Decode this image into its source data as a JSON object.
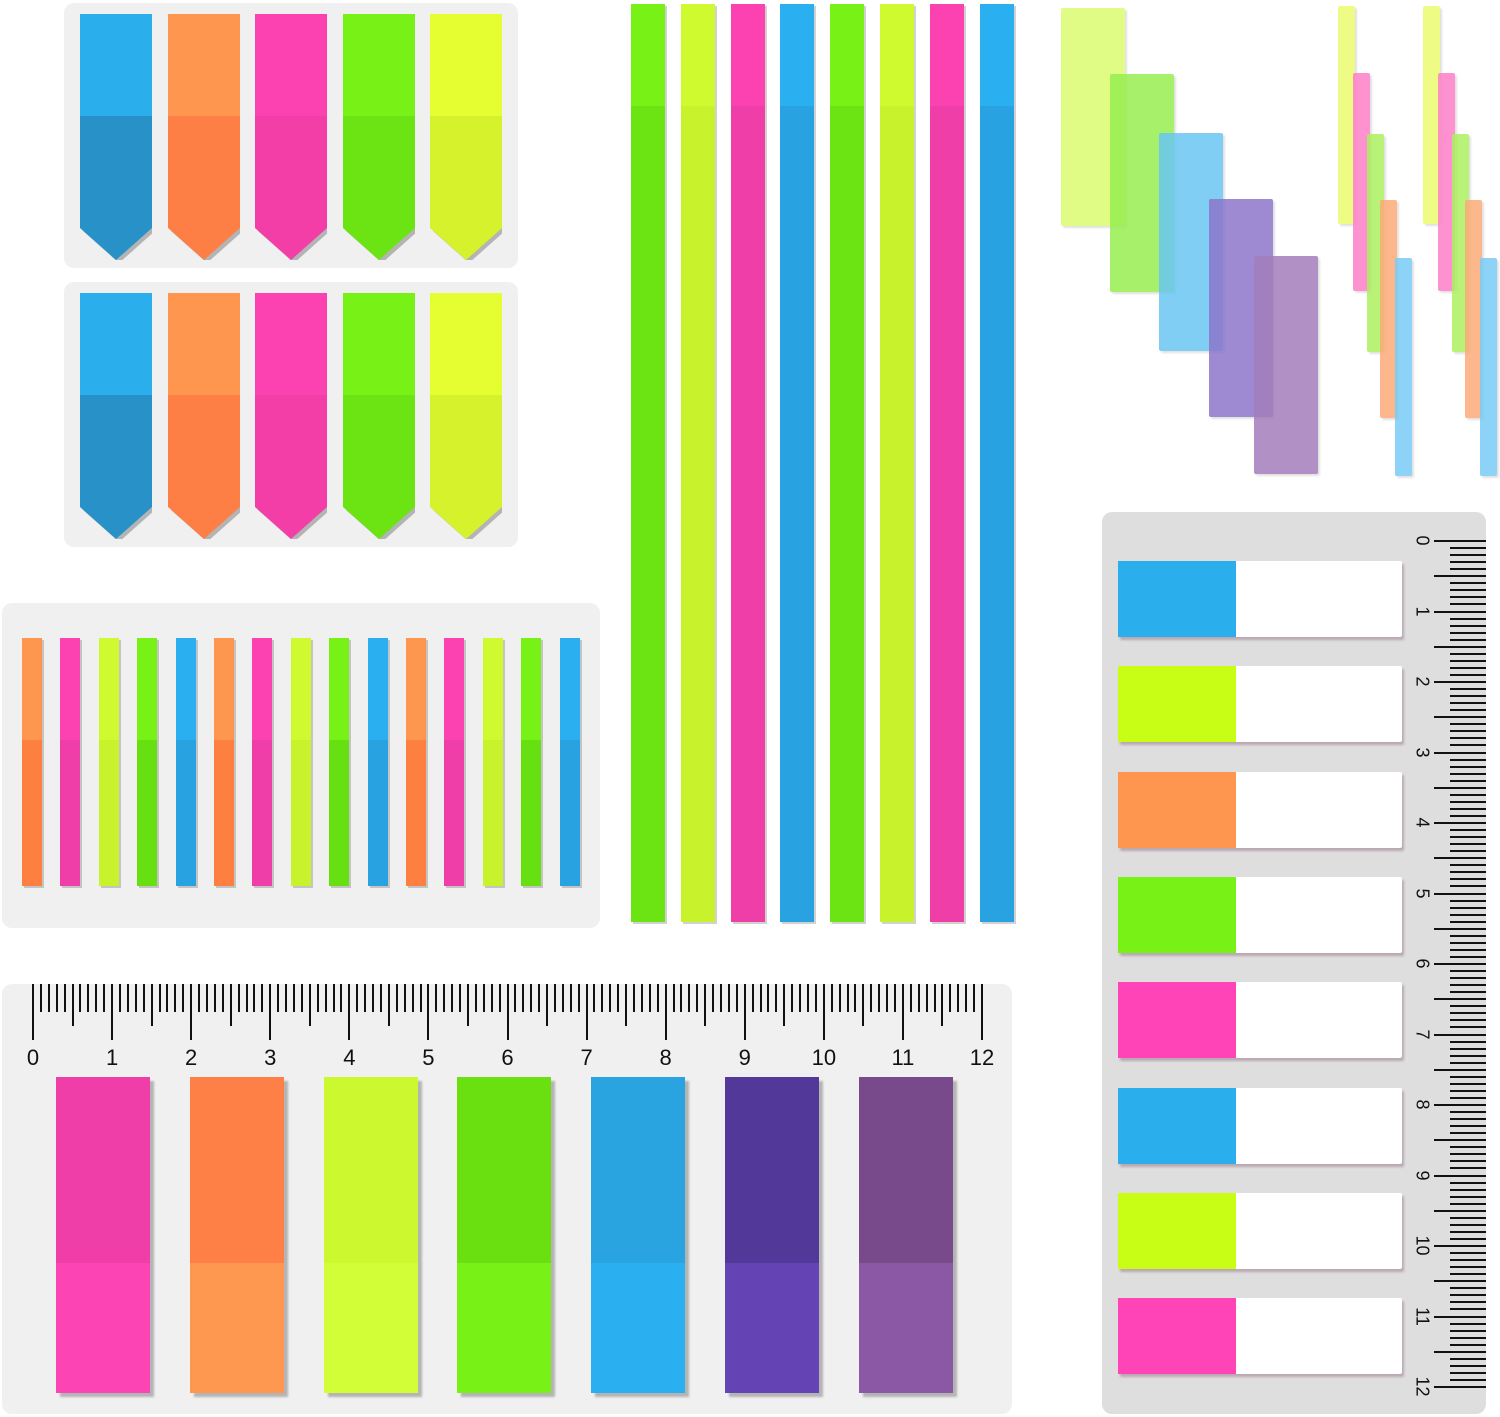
{
  "image": {
    "subject": "translucent sticky index tab flags assortment",
    "background": "#ffffff",
    "panel_color": "#f1f0f0"
  },
  "arrow_flags": {
    "rows": 2,
    "colors": [
      {
        "name": "blue",
        "top": "#2aaeec",
        "bottom": "#2892c8"
      },
      {
        "name": "orange",
        "top": "#fe9650",
        "bottom": "#fe7f46"
      },
      {
        "name": "pink",
        "top": "#fc42b0",
        "bottom": "#f33ea8"
      },
      {
        "name": "green",
        "top": "#78f216",
        "bottom": "#6ce414"
      },
      {
        "name": "yellow",
        "top": "#e4fe32",
        "bottom": "#d6f22c"
      }
    ]
  },
  "long_strips": {
    "colors": [
      {
        "name": "green",
        "top": "#78f216",
        "bottom": "#6ce414"
      },
      {
        "name": "yellow",
        "top": "#d0fa30",
        "bottom": "#c8f22c"
      },
      {
        "name": "pink",
        "top": "#fc42b0",
        "bottom": "#f03ea8"
      },
      {
        "name": "blue",
        "top": "#2ab0f0",
        "bottom": "#28a2e0"
      },
      {
        "name": "green",
        "top": "#78f216",
        "bottom": "#6ce414"
      },
      {
        "name": "yellow",
        "top": "#d0fa30",
        "bottom": "#c8f22c"
      },
      {
        "name": "pink",
        "top": "#fc42b0",
        "bottom": "#f03ea8"
      },
      {
        "name": "blue",
        "top": "#2ab0f0",
        "bottom": "#28a2e0"
      }
    ]
  },
  "thin_strips": {
    "colors": [
      {
        "name": "orange",
        "top": "#fe9650",
        "bottom": "#fe8040"
      },
      {
        "name": "pink",
        "top": "#fc42b0",
        "bottom": "#f03ea8"
      },
      {
        "name": "yellow",
        "top": "#d0fa30",
        "bottom": "#c8f22c"
      },
      {
        "name": "green",
        "top": "#78f216",
        "bottom": "#66e010"
      },
      {
        "name": "blue",
        "top": "#2ab0f0",
        "bottom": "#28a2e0"
      },
      {
        "name": "orange",
        "top": "#fe9650",
        "bottom": "#fe8040"
      },
      {
        "name": "pink",
        "top": "#fc42b0",
        "bottom": "#f03ea8"
      },
      {
        "name": "yellow",
        "top": "#d0fa30",
        "bottom": "#c8f22c"
      },
      {
        "name": "green",
        "top": "#78f216",
        "bottom": "#66e010"
      },
      {
        "name": "blue",
        "top": "#2ab0f0",
        "bottom": "#28a2e0"
      },
      {
        "name": "orange",
        "top": "#fe9650",
        "bottom": "#fe8040"
      },
      {
        "name": "pink",
        "top": "#fc42b0",
        "bottom": "#f03ea8"
      },
      {
        "name": "yellow",
        "top": "#d0fa30",
        "bottom": "#c8f22c"
      },
      {
        "name": "green",
        "top": "#78f216",
        "bottom": "#66e010"
      },
      {
        "name": "blue",
        "top": "#2ab0f0",
        "bottom": "#28a2e0"
      }
    ]
  },
  "transparent_wide": {
    "colors": [
      "#dcfc70",
      "#98ee50",
      "#6ac6f2",
      "#8c76cc",
      "#a47ebc"
    ]
  },
  "transparent_narrow": {
    "colors": [
      "#ecfc70",
      "#fe80c8",
      "#acf060",
      "#fcac78",
      "#78ccf6"
    ]
  },
  "horizontal_ruler": {
    "labels": [
      "0",
      "1",
      "2",
      "3",
      "4",
      "5",
      "6",
      "7",
      "8",
      "9",
      "10",
      "11",
      "12"
    ]
  },
  "ruler_tabs": {
    "colors": [
      {
        "name": "pink",
        "top": "#f03ea8",
        "bottom": "#fc44b4"
      },
      {
        "name": "orange",
        "top": "#fe8046",
        "bottom": "#fe9850"
      },
      {
        "name": "yellow",
        "top": "#ccf830",
        "bottom": "#d2fe38"
      },
      {
        "name": "green",
        "top": "#6ae010",
        "bottom": "#78f216"
      },
      {
        "name": "blue",
        "top": "#2aa4e0",
        "bottom": "#2ab0f0"
      },
      {
        "name": "indigo",
        "top": "#523898",
        "bottom": "#6444b4"
      },
      {
        "name": "purple",
        "top": "#784a8c",
        "bottom": "#8a58a4"
      }
    ]
  },
  "vertical_ruler": {
    "labels": [
      "0",
      "1",
      "2",
      "3",
      "4",
      "5",
      "6",
      "7",
      "8",
      "9",
      "10",
      "11",
      "12"
    ]
  },
  "page_flags": {
    "colors": [
      "#2aaeec",
      "#c8fe16",
      "#fe9650",
      "#78f216",
      "#fe44b6",
      "#2aaeec",
      "#c8fe16",
      "#fe44b6"
    ]
  }
}
